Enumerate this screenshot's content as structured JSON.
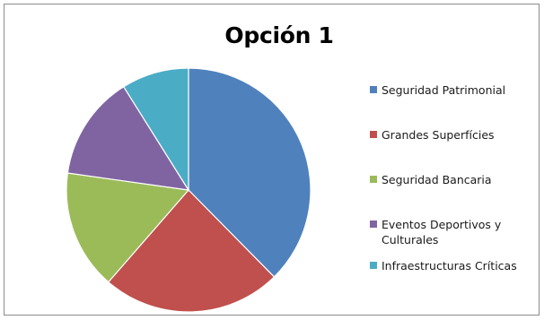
{
  "chart_data": {
    "type": "pie",
    "title": "Opción 1",
    "legend": "right",
    "categories": [
      "Seguridad Patrimonial",
      "Grandes Superfícies",
      "Seguridad Bancaria",
      "Eventos Deportivos y Culturales",
      "Infraestructuras Críticas"
    ],
    "values": [
      38,
      24,
      16,
      14,
      9
    ],
    "colors": [
      "#4f81bd",
      "#c0504d",
      "#9bbb59",
      "#8064a2",
      "#4bacc6"
    ],
    "start_angle_deg": 0,
    "direction": "clockwise"
  }
}
